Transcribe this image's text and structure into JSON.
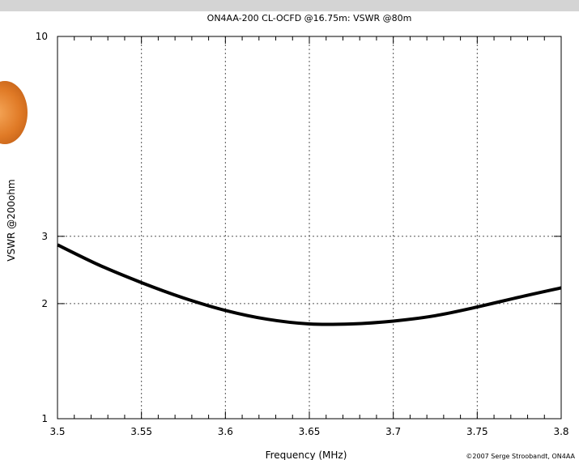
{
  "chart_data": {
    "type": "line",
    "title": "ON4AA-200 CL-OCFD @16.75m: VSWR @80m",
    "xlabel": "Frequency (MHz)",
    "ylabel": "VSWR @200ohm",
    "credit": "©2007 Serge Stroobandt, ON4AA",
    "xlim": [
      3.5,
      3.8
    ],
    "ylim": [
      1,
      10
    ],
    "yscale": "log",
    "grid": true,
    "x_ticks": [
      3.5,
      3.55,
      3.6,
      3.65,
      3.7,
      3.75,
      3.8
    ],
    "x_tick_labels": [
      "3.5",
      "3.55",
      "3.6",
      "3.65",
      "3.7",
      "3.75",
      "3.8"
    ],
    "y_ticks": [
      1,
      2,
      3,
      10
    ],
    "y_tick_labels": [
      "1",
      "2",
      "3",
      "10"
    ],
    "series": [
      {
        "x": [
          3.5,
          3.525,
          3.55,
          3.575,
          3.6,
          3.625,
          3.65,
          3.675,
          3.7,
          3.725,
          3.75,
          3.775,
          3.8
        ],
        "y": [
          2.85,
          2.52,
          2.27,
          2.07,
          1.92,
          1.82,
          1.77,
          1.77,
          1.8,
          1.86,
          1.96,
          2.08,
          2.2
        ]
      }
    ],
    "line_color": "#000000"
  }
}
